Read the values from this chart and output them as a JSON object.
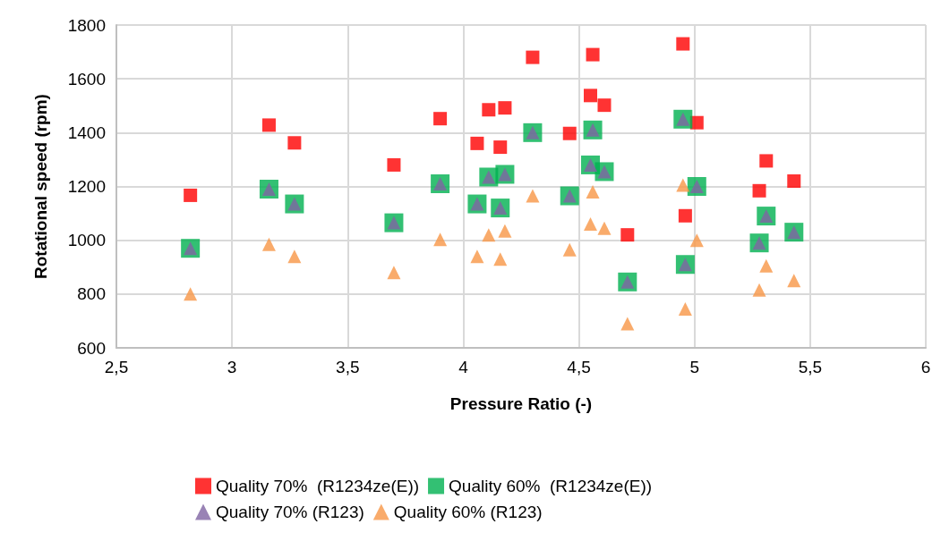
{
  "chart_data": {
    "type": "scatter",
    "xlabel": "Pressure Ratio (-)",
    "ylabel": "Rotational speed (rpm)",
    "x": [
      2.82,
      3.16,
      3.27,
      3.7,
      3.9,
      4.06,
      4.11,
      4.16,
      4.18,
      4.3,
      4.46,
      4.55,
      4.56,
      4.61,
      4.71,
      4.95,
      4.96,
      5.01,
      5.28,
      5.31,
      5.43
    ],
    "series": [
      {
        "name": "Quality 70%  (R1234ze(E))",
        "color": "#ff0000",
        "marker": "square",
        "values": [
          1167,
          1428,
          1362,
          1280,
          1452,
          1360,
          1485,
          1346,
          1492,
          1680,
          1397,
          1538,
          1690,
          1502,
          1020,
          1730,
          1091,
          1437,
          1184,
          1295,
          1220
        ]
      },
      {
        "name": "Quality 60%  (R1234ze(E))",
        "color": "#00b050",
        "marker": "square",
        "values": [
          970,
          1190,
          1135,
          1065,
          1210,
          1135,
          1235,
          1120,
          1245,
          1400,
          1165,
          1280,
          1410,
          1255,
          845,
          1450,
          910,
          1200,
          990,
          1090,
          1030
        ]
      },
      {
        "name": "Quality 70% (R123)",
        "color": "#8064a2",
        "marker": "triangle",
        "values": [
          970,
          1190,
          1135,
          1065,
          1210,
          1135,
          1235,
          1120,
          1245,
          1400,
          1165,
          1280,
          1410,
          1255,
          845,
          1450,
          910,
          1200,
          990,
          1090,
          1030
        ]
      },
      {
        "name": "Quality 60% (R123)",
        "color": "#f79646",
        "marker": "triangle",
        "values": [
          800,
          985,
          940,
          880,
          1003,
          940,
          1020,
          930,
          1035,
          1165,
          965,
          1060,
          1180,
          1045,
          690,
          1205,
          745,
          1000,
          815,
          905,
          850
        ]
      }
    ],
    "xlim": [
      2.5,
      6
    ],
    "xticks": [
      {
        "value": 2.5,
        "label": "2,5"
      },
      3,
      {
        "value": 3.5,
        "label": "3,5"
      },
      4,
      {
        "value": 4.5,
        "label": "4,5"
      },
      5,
      {
        "value": 5.5,
        "label": "5,5"
      },
      6
    ],
    "ylim": [
      600,
      1800
    ],
    "yticks": [
      600,
      800,
      1000,
      1200,
      1400,
      1600,
      1800
    ],
    "grid": true,
    "legend": "bottom"
  }
}
